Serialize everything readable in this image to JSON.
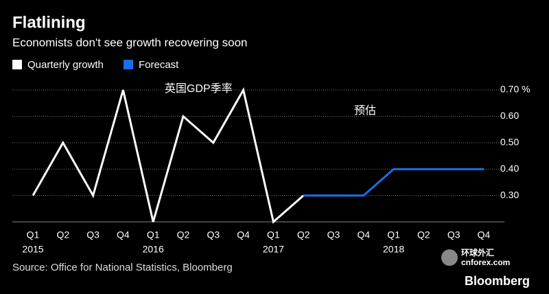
{
  "chart_data": {
    "type": "line",
    "title": "Flatlining",
    "subtitle": "Economists don't see growth recovering soon",
    "categories": [
      "Q1",
      "Q2",
      "Q3",
      "Q4",
      "Q1",
      "Q2",
      "Q3",
      "Q4",
      "Q1",
      "Q2",
      "Q3",
      "Q4",
      "Q1",
      "Q2",
      "Q3",
      "Q4"
    ],
    "year_labels": [
      "2015",
      "2016",
      "2017",
      "2018"
    ],
    "series": [
      {
        "name": "Quarterly growth",
        "color": "#ffffff",
        "values": [
          0.3,
          0.5,
          0.3,
          0.7,
          0.2,
          0.6,
          0.5,
          0.7,
          0.2,
          0.3,
          null,
          null,
          null,
          null,
          null,
          null
        ]
      },
      {
        "name": "Forecast",
        "color": "#1a6fe8",
        "values": [
          null,
          null,
          null,
          null,
          null,
          null,
          null,
          null,
          null,
          0.3,
          0.3,
          0.3,
          0.4,
          0.4,
          0.4,
          0.4
        ]
      }
    ],
    "ylim": [
      0.2,
      0.7
    ],
    "yticks": [
      {
        "value": 0.3,
        "label": "0.30"
      },
      {
        "value": 0.4,
        "label": "0.40"
      },
      {
        "value": 0.5,
        "label": "0.50"
      },
      {
        "value": 0.6,
        "label": "0.60"
      },
      {
        "value": 0.7,
        "label": "0.70 %"
      }
    ],
    "grid": true,
    "annotations": [
      "英国GDP季率",
      "预估"
    ],
    "source": "Source: Office for National Statistics, Bloomberg",
    "brand": "Bloomberg",
    "watermark": [
      "环球外汇",
      "cnforex.com"
    ]
  }
}
